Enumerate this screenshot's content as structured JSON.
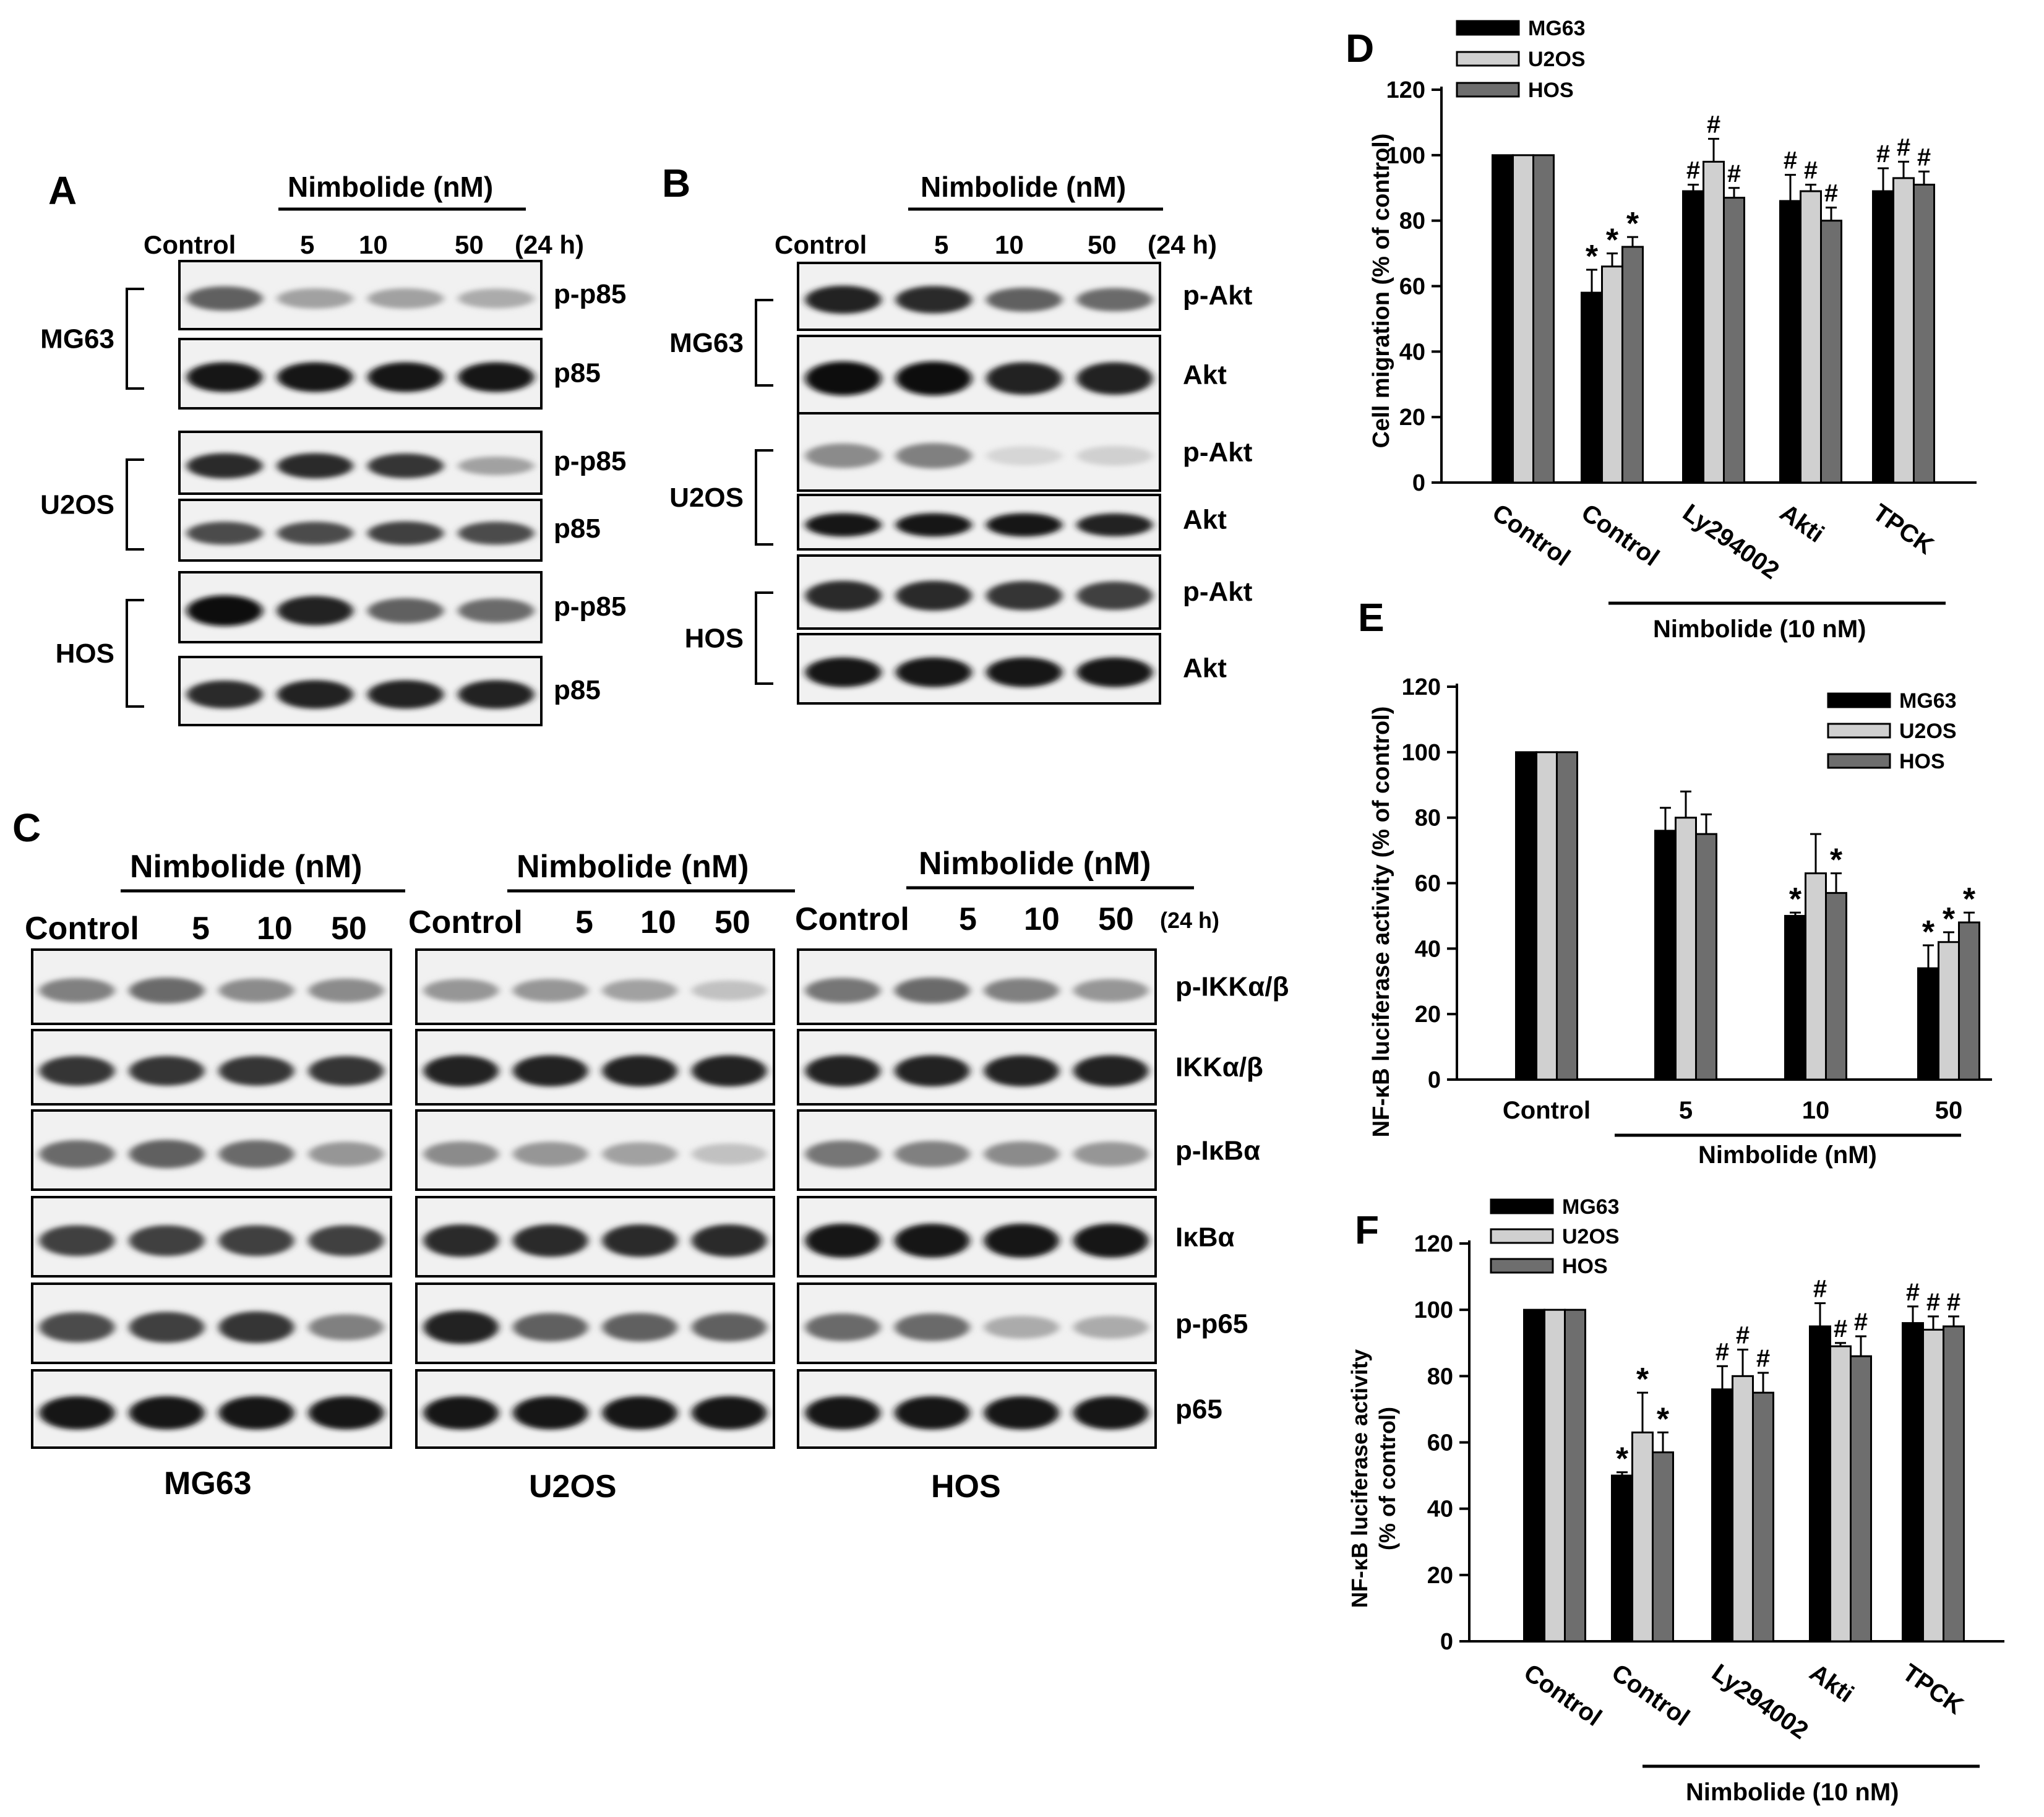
{
  "panel_letters": {
    "a": "A",
    "b": "B",
    "c": "C",
    "d": "D",
    "e": "E",
    "f": "F"
  },
  "treatment_header": "Nimbolide (nM)",
  "lanes": [
    "Control",
    "5",
    "10",
    "50"
  ],
  "time": "(24 h)",
  "panel_a": {
    "groups": [
      {
        "cell": "MG63",
        "blots": [
          {
            "label": "p-p85",
            "intensity": [
              0.6,
              0.3,
              0.3,
              0.25
            ]
          },
          {
            "label": "p85",
            "intensity": [
              0.95,
              0.95,
              0.95,
              0.95
            ]
          }
        ]
      },
      {
        "cell": "U2OS",
        "blots": [
          {
            "label": "p-p85",
            "intensity": [
              0.85,
              0.85,
              0.8,
              0.3
            ]
          },
          {
            "label": "p85",
            "intensity": [
              0.7,
              0.7,
              0.75,
              0.7
            ]
          }
        ]
      },
      {
        "cell": "HOS",
        "blots": [
          {
            "label": "p-p85",
            "intensity": [
              1.0,
              0.9,
              0.6,
              0.55
            ]
          },
          {
            "label": "p85",
            "intensity": [
              0.85,
              0.9,
              0.9,
              0.9
            ]
          }
        ]
      }
    ]
  },
  "panel_b": {
    "groups": [
      {
        "cell": "MG63",
        "blots": [
          {
            "label": "p-Akt",
            "intensity": [
              0.9,
              0.85,
              0.6,
              0.55
            ]
          },
          {
            "label": "Akt",
            "intensity": [
              1.0,
              1.0,
              0.9,
              0.9
            ]
          }
        ]
      },
      {
        "cell": "U2OS",
        "blots": [
          {
            "label": "p-Akt",
            "intensity": [
              0.4,
              0.45,
              0.05,
              0.08
            ]
          },
          {
            "label": "Akt",
            "intensity": [
              0.95,
              0.95,
              0.95,
              0.9
            ]
          }
        ]
      },
      {
        "cell": "HOS",
        "blots": [
          {
            "label": "p-Akt",
            "intensity": [
              0.85,
              0.85,
              0.8,
              0.75
            ]
          },
          {
            "label": "Akt",
            "intensity": [
              0.95,
              0.95,
              0.95,
              0.95
            ]
          }
        ]
      }
    ]
  },
  "panel_c": {
    "cells": [
      "MG63",
      "U2OS",
      "HOS"
    ],
    "rows": [
      "p-IKKα/β",
      "IKKα/β",
      "p-IκBα",
      "IκBα",
      "p-p65",
      "p65"
    ],
    "intensity": [
      [
        [
          0.45,
          0.55,
          0.4,
          0.4
        ],
        [
          0.8,
          0.8,
          0.8,
          0.8
        ],
        [
          0.55,
          0.6,
          0.55,
          0.35
        ],
        [
          0.75,
          0.75,
          0.75,
          0.75
        ],
        [
          0.7,
          0.75,
          0.8,
          0.45
        ],
        [
          0.95,
          0.95,
          0.95,
          0.95
        ]
      ],
      [
        [
          0.35,
          0.35,
          0.3,
          0.15
        ],
        [
          0.9,
          0.9,
          0.9,
          0.9
        ],
        [
          0.4,
          0.35,
          0.3,
          0.15
        ],
        [
          0.85,
          0.85,
          0.85,
          0.85
        ],
        [
          0.9,
          0.6,
          0.6,
          0.6
        ],
        [
          0.95,
          0.95,
          0.95,
          0.95
        ]
      ],
      [
        [
          0.5,
          0.55,
          0.45,
          0.35
        ],
        [
          0.9,
          0.9,
          0.9,
          0.9
        ],
        [
          0.5,
          0.45,
          0.4,
          0.35
        ],
        [
          0.95,
          0.95,
          0.95,
          0.95
        ],
        [
          0.55,
          0.55,
          0.25,
          0.25
        ],
        [
          0.95,
          0.95,
          0.95,
          0.95
        ]
      ]
    ]
  },
  "chart_data": [
    {
      "panel": "D",
      "type": "bar",
      "ylabel": "Cell migration (% of control)",
      "xlabel": "",
      "ylim": [
        0,
        120
      ],
      "yticks": [
        0,
        20,
        40,
        60,
        80,
        100,
        120
      ],
      "categories": [
        "Control",
        "Control",
        "Ly294002",
        "Akti",
        "TPCK"
      ],
      "group_label": "Nimbolide (10 nM)",
      "series": [
        {
          "name": "MG63",
          "values": [
            100,
            58,
            89,
            86,
            89
          ],
          "errors": [
            0,
            7,
            2,
            8,
            7
          ],
          "marks": [
            "",
            "*",
            "#",
            "#",
            "#"
          ]
        },
        {
          "name": "U2OS",
          "values": [
            100,
            66,
            98,
            89,
            93
          ],
          "errors": [
            0,
            4,
            7,
            2,
            5
          ],
          "marks": [
            "",
            "*",
            "#",
            "#",
            "#"
          ]
        },
        {
          "name": "HOS",
          "values": [
            100,
            72,
            87,
            80,
            91
          ],
          "errors": [
            0,
            3,
            3,
            4,
            4
          ],
          "marks": [
            "",
            "*",
            "#",
            "#",
            "#"
          ]
        }
      ],
      "colors": [
        "#000000",
        "#d0d0d0",
        "#6e6e6e"
      ],
      "legend": "top-left"
    },
    {
      "panel": "E",
      "type": "bar",
      "ylabel": "NF-κB luciferase activity (% of control)",
      "xlabel": "Nimbolide (nM)",
      "ylim": [
        0,
        120
      ],
      "yticks": [
        0,
        20,
        40,
        60,
        80,
        100,
        120
      ],
      "categories": [
        "Control",
        "5",
        "10",
        "50"
      ],
      "series": [
        {
          "name": "MG63",
          "values": [
            100,
            76,
            50,
            34
          ],
          "errors": [
            0,
            7,
            1,
            7
          ],
          "marks": [
            "",
            "",
            "*",
            "*"
          ]
        },
        {
          "name": "U2OS",
          "values": [
            100,
            80,
            63,
            42
          ],
          "errors": [
            0,
            8,
            12,
            3
          ],
          "marks": [
            "",
            "",
            "",
            "*"
          ]
        },
        {
          "name": "HOS",
          "values": [
            100,
            75,
            57,
            48
          ],
          "errors": [
            0,
            6,
            6,
            3
          ],
          "marks": [
            "",
            "",
            "*",
            "*"
          ]
        }
      ],
      "colors": [
        "#000000",
        "#d0d0d0",
        "#6e6e6e"
      ],
      "legend": "top-right"
    },
    {
      "panel": "F",
      "type": "bar",
      "ylabel_lines": [
        "NF-κB luciferase activity",
        "(% of control)"
      ],
      "xlabel": "",
      "ylim": [
        0,
        120
      ],
      "yticks": [
        0,
        20,
        40,
        60,
        80,
        100,
        120
      ],
      "categories": [
        "Control",
        "Control",
        "Ly294002",
        "Akti",
        "TPCK"
      ],
      "group_label": "Nimbolide (10 nM)",
      "series": [
        {
          "name": "MG63",
          "values": [
            100,
            50,
            76,
            95,
            96
          ],
          "errors": [
            0,
            1,
            7,
            7,
            5
          ],
          "marks": [
            "",
            "*",
            "#",
            "#",
            "#"
          ]
        },
        {
          "name": "U2OS",
          "values": [
            100,
            63,
            80,
            89,
            94
          ],
          "errors": [
            0,
            12,
            8,
            1,
            4
          ],
          "marks": [
            "",
            "*",
            "#",
            "#",
            "#"
          ]
        },
        {
          "name": "HOS",
          "values": [
            100,
            57,
            75,
            86,
            95
          ],
          "errors": [
            0,
            6,
            6,
            6,
            3
          ],
          "marks": [
            "",
            "*",
            "#",
            "#",
            "#"
          ]
        }
      ],
      "colors": [
        "#000000",
        "#d0d0d0",
        "#6e6e6e"
      ],
      "legend": "top-left"
    }
  ]
}
